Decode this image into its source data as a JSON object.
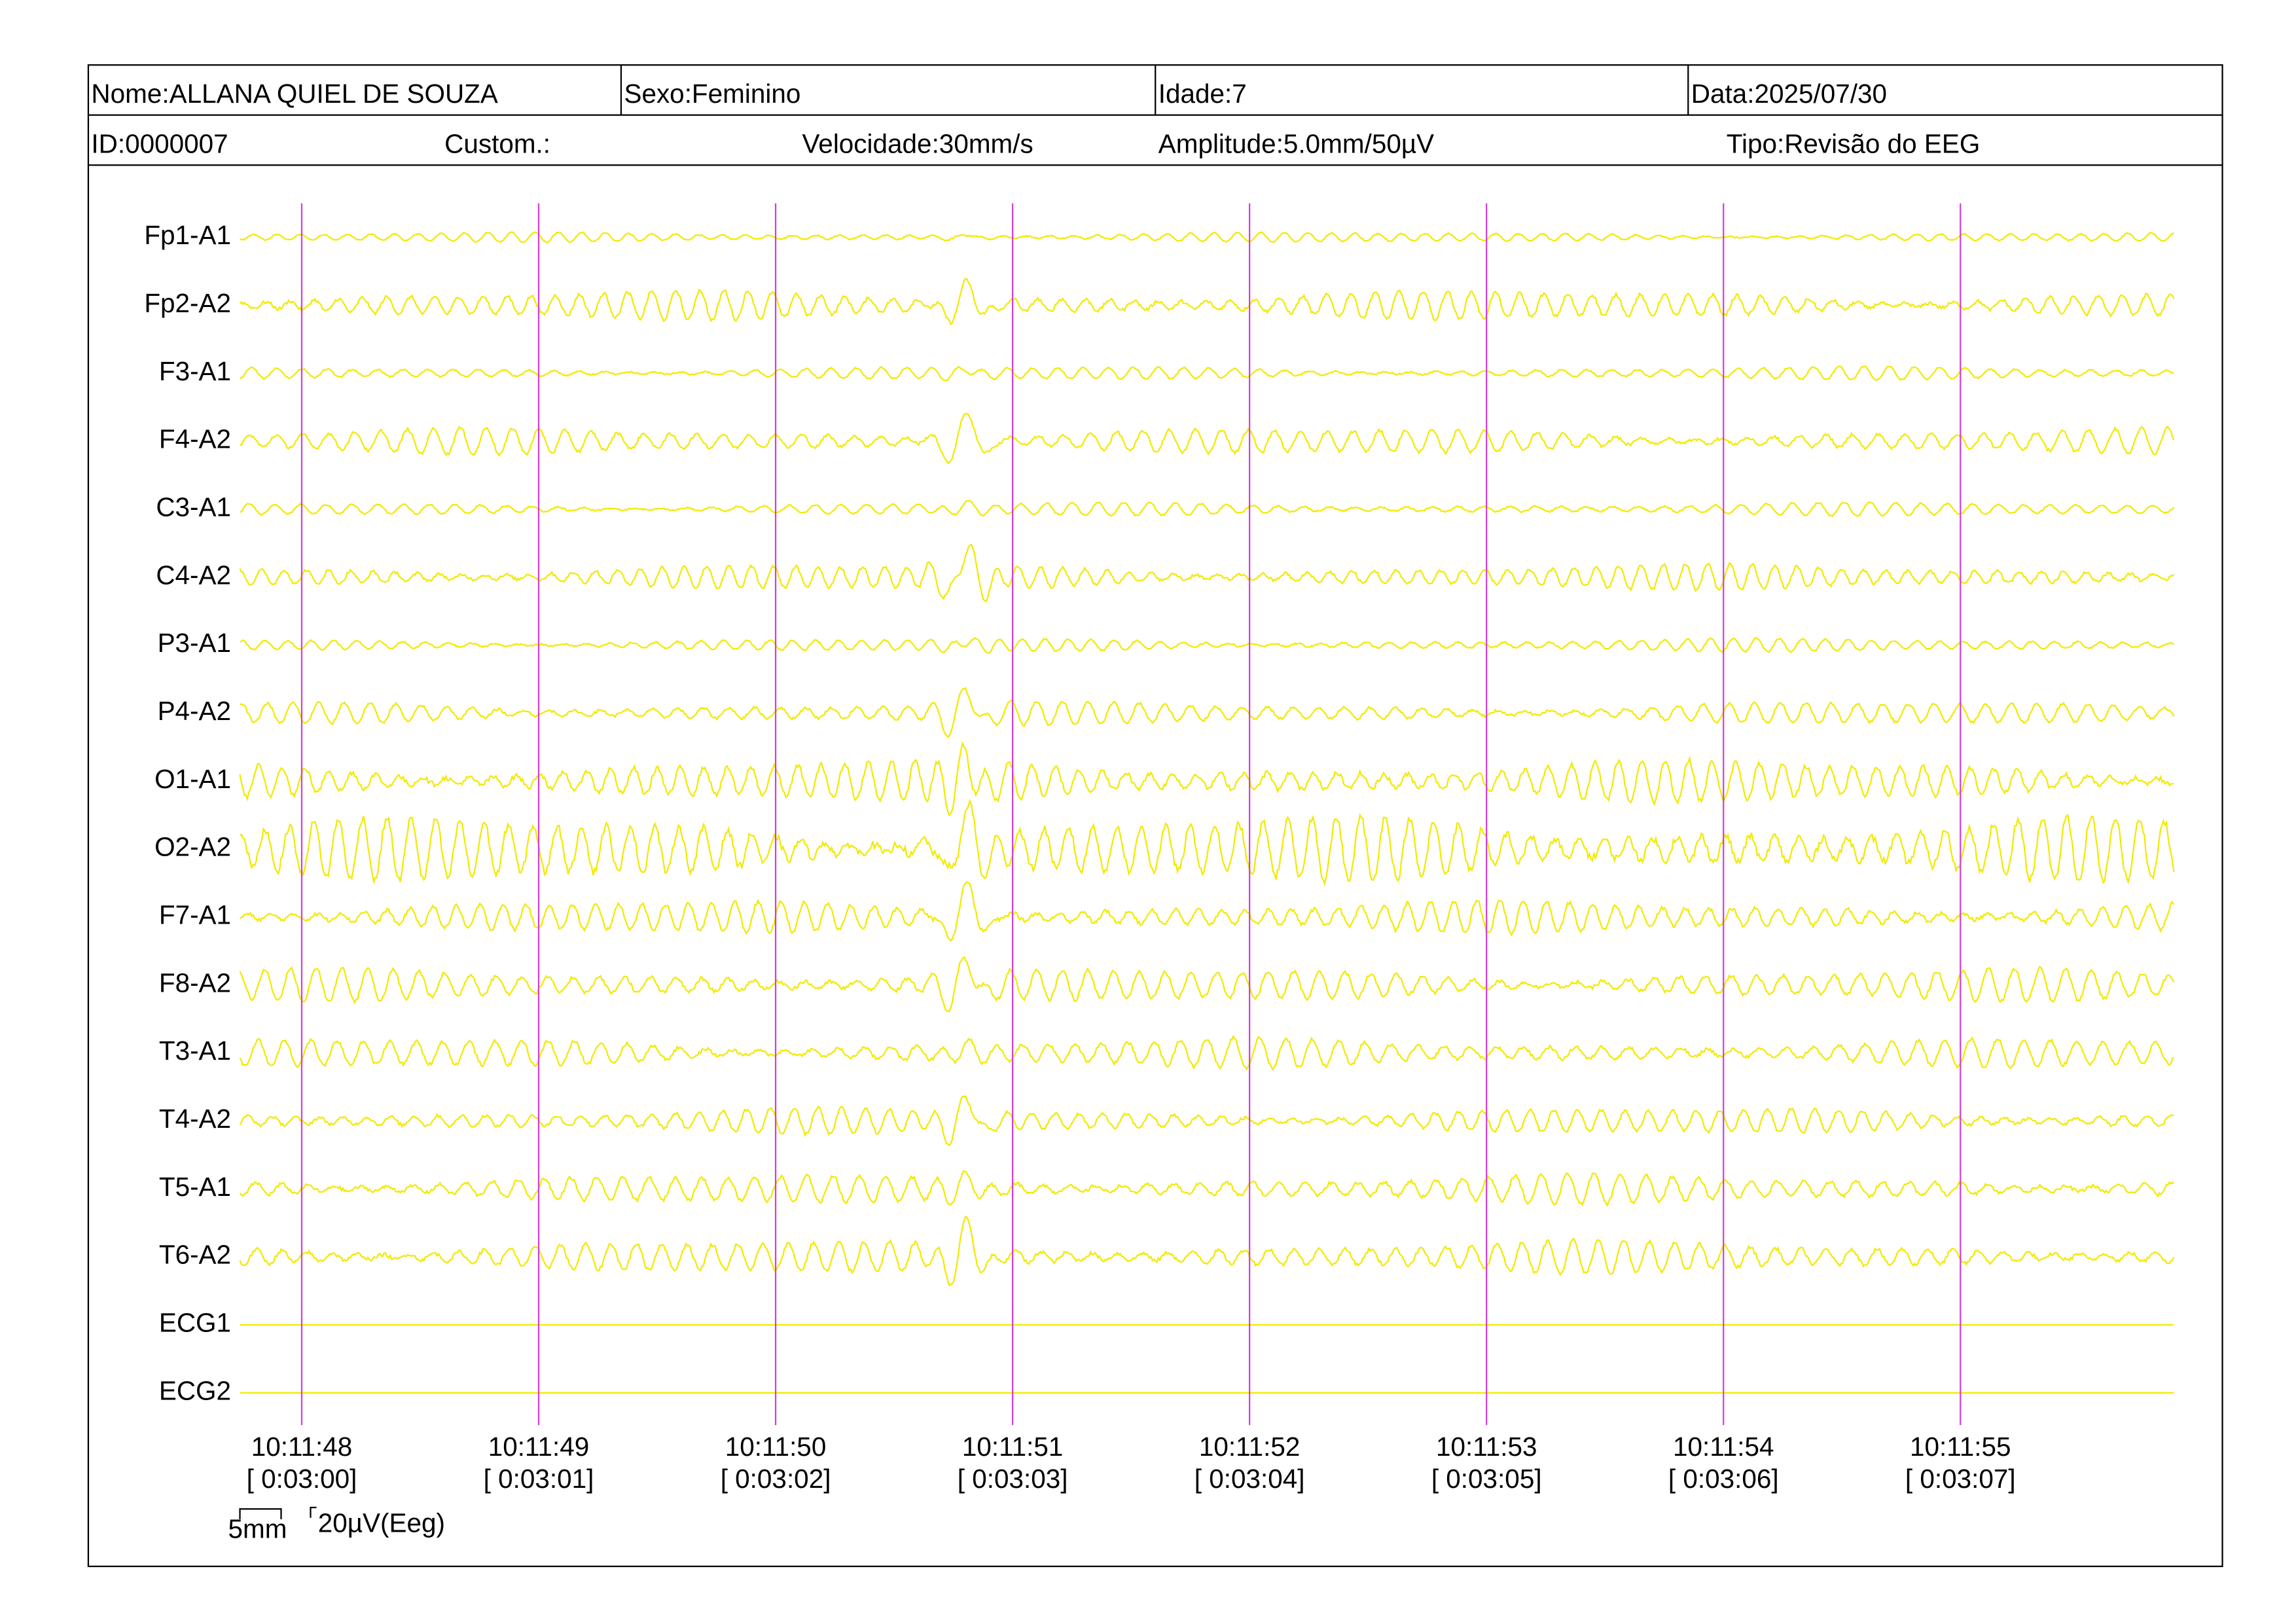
{
  "header": {
    "name": "Nome:ALLANA QUIEL DE SOUZA",
    "sex": "Sexo:Feminino",
    "age": "Idade:7",
    "date": "Data:2025/07/30",
    "id": "ID:0000007",
    "custom": "Custom.:",
    "speed": "Velocidade:30mm/s",
    "amplitude": "Amplitude:5.0mm/50µV",
    "type": "Tipo:Revisão do EEG"
  },
  "channels": [
    "Fp1-A1",
    "Fp2-A2",
    "F3-A1",
    "F4-A2",
    "C3-A1",
    "C4-A2",
    "P3-A1",
    "P4-A2",
    "O1-A1",
    "O2-A2",
    "F7-A1",
    "F8-A2",
    "T3-A1",
    "T4-A2",
    "T5-A1",
    "T6-A2",
    "ECG1",
    "ECG2"
  ],
  "time_marks": [
    {
      "clock": "10:11:48",
      "elapsed": "[ 0:03:00]"
    },
    {
      "clock": "10:11:49",
      "elapsed": "[ 0:03:01]"
    },
    {
      "clock": "10:11:50",
      "elapsed": "[ 0:03:02]"
    },
    {
      "clock": "10:11:51",
      "elapsed": "[ 0:03:03]"
    },
    {
      "clock": "10:11:52",
      "elapsed": "[ 0:03:04]"
    },
    {
      "clock": "10:11:53",
      "elapsed": "[ 0:03:05]"
    },
    {
      "clock": "10:11:54",
      "elapsed": "[ 0:03:06]"
    },
    {
      "clock": "10:11:55",
      "elapsed": "[ 0:03:07]"
    }
  ],
  "scale": {
    "width": "5mm",
    "amplitude": "20µV(Eeg)"
  }
}
